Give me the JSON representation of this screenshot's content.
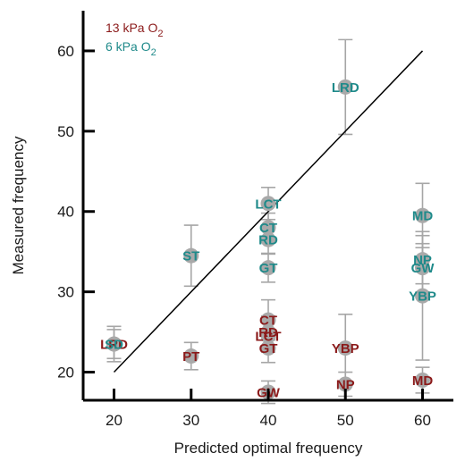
{
  "chart_data": {
    "type": "scatter",
    "xlabel": "Predicted optimal frequency",
    "ylabel": "Measured frequency",
    "xlim": [
      16,
      64
    ],
    "ylim": [
      16.5,
      65
    ],
    "xticks": [
      20,
      30,
      40,
      50,
      60
    ],
    "yticks": [
      20,
      30,
      40,
      50,
      60
    ],
    "identity_line": [
      [
        20,
        20
      ],
      [
        60,
        60
      ]
    ],
    "legend_position": "top-left",
    "legend": [
      {
        "label": "13 kPa O",
        "sub": "2",
        "color": "#8b1a1a"
      },
      {
        "label": "6 kPa O",
        "sub": "2",
        "color": "#1f8a8a"
      }
    ],
    "series": [
      {
        "name": "13 kPa O2",
        "color": "#8b1a1a",
        "points": [
          {
            "label": "LRD",
            "x": 20,
            "y": 23.5,
            "err": 2.2
          },
          {
            "label": "PT",
            "x": 30,
            "y": 22,
            "err": 1.7
          },
          {
            "label": "CT",
            "x": 40,
            "y": 26.5,
            "err": 2.5
          },
          {
            "label": "RD",
            "x": 40,
            "y": 25,
            "err": 2.0
          },
          {
            "label": "LCT",
            "x": 40,
            "y": 24.5,
            "err": 2.0
          },
          {
            "label": "GT",
            "x": 40,
            "y": 23,
            "err": 1.8
          },
          {
            "label": "GW",
            "x": 40,
            "y": 17.5,
            "err": 1.4
          },
          {
            "label": "YBP",
            "x": 50,
            "y": 23,
            "err": 4.2
          },
          {
            "label": "NP",
            "x": 50,
            "y": 18.5,
            "err": 1.5
          },
          {
            "label": "MD",
            "x": 60,
            "y": 19,
            "err": 1.6
          }
        ]
      },
      {
        "name": "6 kPa O2",
        "color": "#1f8a8a",
        "points": [
          {
            "label": "SD",
            "x": 20,
            "y": 23.5,
            "err": 1.8
          },
          {
            "label": "ST",
            "x": 30,
            "y": 34.5,
            "err": 3.8
          },
          {
            "label": "LCT",
            "x": 40,
            "y": 41,
            "err": 2.0
          },
          {
            "label": "CT",
            "x": 40,
            "y": 38,
            "err": 1.8
          },
          {
            "label": "RD",
            "x": 40,
            "y": 36.5,
            "err": 1.8
          },
          {
            "label": "GT",
            "x": 40,
            "y": 33,
            "err": 1.8
          },
          {
            "label": "LRD",
            "x": 50,
            "y": 55.5,
            "err": 5.9
          },
          {
            "label": "MD",
            "x": 60,
            "y": 39.5,
            "err": 4.0
          },
          {
            "label": "NP",
            "x": 60,
            "y": 34,
            "err": 3.0
          },
          {
            "label": "GW",
            "x": 60,
            "y": 33,
            "err": 3.0
          },
          {
            "label": "YBP",
            "x": 60,
            "y": 29.5,
            "err": 8.0
          }
        ]
      }
    ]
  }
}
